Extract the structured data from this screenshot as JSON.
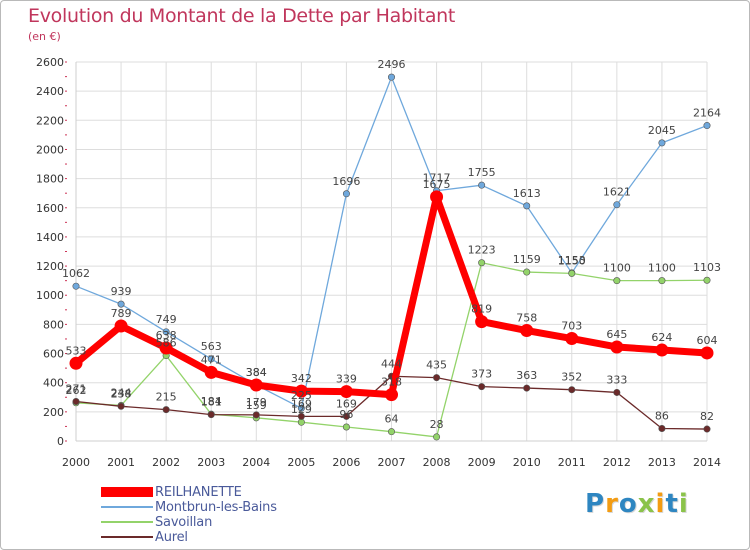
{
  "title": "Evolution du Montant de la Dette par Habitant",
  "subtitle": "(en €)",
  "logo_text": "Proxiti",
  "chart_data": {
    "type": "line",
    "title": "Evolution du Montant de la Dette par Habitant",
    "subtitle": "(en €)",
    "xlabel": "",
    "ylabel": "",
    "x": [
      2000,
      2001,
      2002,
      2003,
      2004,
      2005,
      2006,
      2007,
      2008,
      2009,
      2010,
      2011,
      2012,
      2013,
      2014
    ],
    "ylim": [
      0,
      2600
    ],
    "yticks": [
      0,
      200,
      400,
      600,
      800,
      1000,
      1200,
      1400,
      1600,
      1800,
      2000,
      2200,
      2400,
      2600
    ],
    "grid": true,
    "legend_position": "bottom-left",
    "series": [
      {
        "name": "REILHANETTE",
        "color": "#ff0000",
        "values": [
          533,
          789,
          638,
          471,
          384,
          342,
          339,
          318,
          1675,
          819,
          758,
          703,
          645,
          624,
          604
        ]
      },
      {
        "name": "Montbrun-les-Bains",
        "color": "#6fa8dc",
        "values": [
          1062,
          939,
          749,
          563,
          384,
          225,
          1696,
          2496,
          1717,
          1755,
          1613,
          1153,
          1621,
          2045,
          2164
        ]
      },
      {
        "name": "Savoillan",
        "color": "#93d36a",
        "values": [
          262,
          244,
          586,
          184,
          159,
          129,
          96,
          64,
          28,
          1223,
          1159,
          1150,
          1100,
          1100,
          1103
        ]
      },
      {
        "name": "Aurel",
        "color": "#6b2a2a",
        "values": [
          271,
          238,
          215,
          181,
          179,
          169,
          169,
          444,
          435,
          373,
          363,
          352,
          333,
          86,
          82
        ]
      }
    ]
  }
}
